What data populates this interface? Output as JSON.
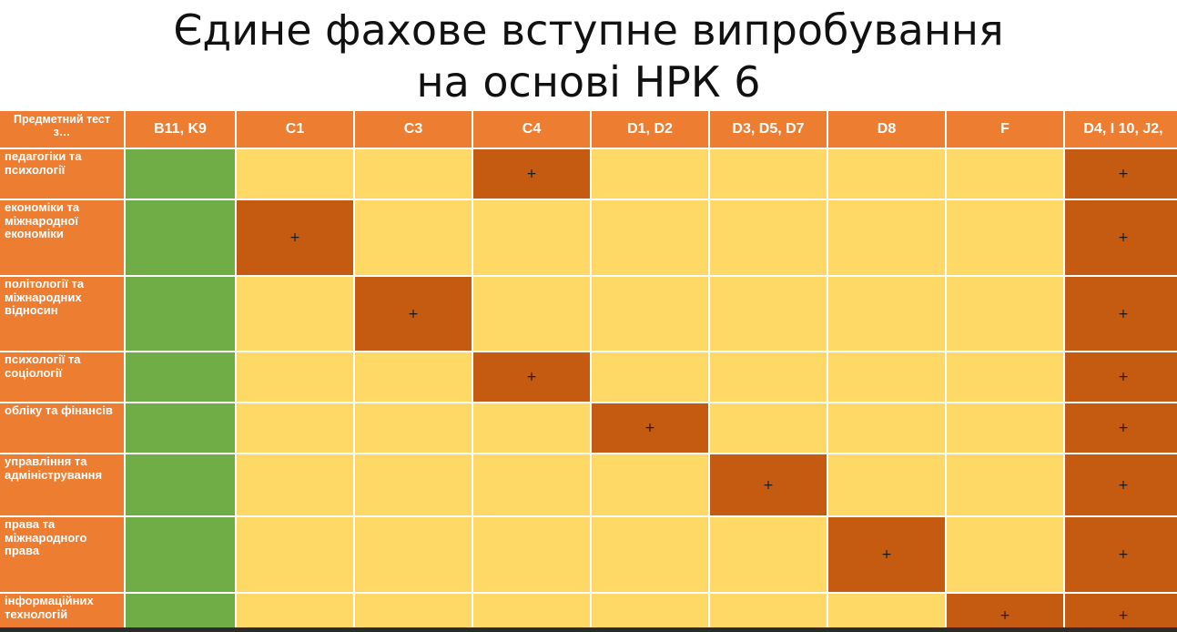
{
  "title": {
    "line1": "Єдине фахове вступне випробування",
    "line2": "на основі НРК 6"
  },
  "table": {
    "corner_label": "Предметний тест з…",
    "columns": [
      "B11, K9",
      "C1",
      "C3",
      "C4",
      "D1, D2",
      "D3, D5, D7",
      "D8",
      "F",
      "D4, I 10, J2,"
    ],
    "mark_symbol": "+",
    "rows": [
      {
        "label": "педагогіки та психології",
        "marked_columns": [
          3,
          8
        ]
      },
      {
        "label": "економіки та міжнародної економіки",
        "marked_columns": [
          1,
          8
        ]
      },
      {
        "label": "політології та міжнародних відносин",
        "marked_columns": [
          2,
          8
        ]
      },
      {
        "label": "психології та соціології",
        "marked_columns": [
          3,
          8
        ]
      },
      {
        "label": "обліку та фінансів",
        "marked_columns": [
          4,
          8
        ]
      },
      {
        "label": "управління та адміністрування",
        "marked_columns": [
          5,
          8
        ]
      },
      {
        "label": "права та міжнародного права",
        "marked_columns": [
          6,
          8
        ]
      },
      {
        "label": "інформаційних технологій",
        "marked_columns": [
          7,
          8
        ]
      }
    ]
  },
  "colors": {
    "header_orange": "#ed7d31",
    "green_column": "#70ad47",
    "light_cell": "#ffd966",
    "marked_cell": "#c55a11"
  }
}
